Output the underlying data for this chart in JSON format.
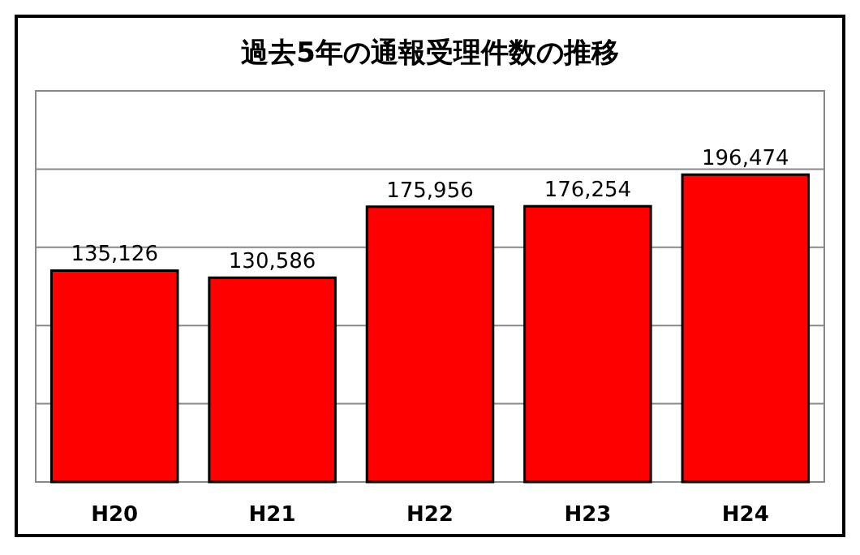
{
  "chart_data": {
    "type": "bar",
    "title": "過去5年の通報受理件数の推移",
    "categories": [
      "H20",
      "H21",
      "H22",
      "H23",
      "H24"
    ],
    "values": [
      135126,
      130586,
      175956,
      176254,
      196474
    ],
    "value_labels": [
      "135,126",
      "130,586",
      "175,956",
      "176,254",
      "196,474"
    ],
    "color": "#ff0000",
    "ylim": [
      0,
      250000
    ],
    "yticks": [
      {
        "value": 0,
        "label": null
      },
      {
        "value": 50000,
        "label": null
      },
      {
        "value": 100000,
        "label": null
      },
      {
        "value": 150000,
        "label": null
      },
      {
        "value": 200000,
        "label": null
      },
      {
        "value": 250000,
        "label": null
      }
    ],
    "tick_labels": "x",
    "grid": "y"
  }
}
